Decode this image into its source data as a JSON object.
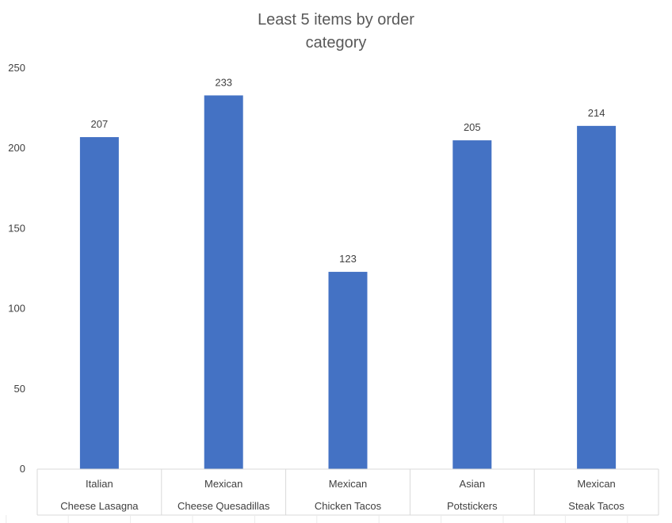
{
  "chart_data": {
    "type": "bar",
    "title_lines": [
      "Least 5 items by order",
      "category"
    ],
    "groups": [
      "Italian",
      "Mexican",
      "Mexican",
      "Asian",
      "Mexican"
    ],
    "categories": [
      "Cheese Lasagna",
      "Cheese Quesadillas",
      "Chicken Tacos",
      "Potstickers",
      "Steak Tacos"
    ],
    "values": [
      207,
      233,
      123,
      205,
      214
    ],
    "ylim": [
      0,
      250
    ],
    "yticks": [
      0,
      50,
      100,
      150,
      200,
      250
    ],
    "grid": false,
    "legend": "none",
    "bar_color": "#4472C4",
    "data_labels": true
  }
}
